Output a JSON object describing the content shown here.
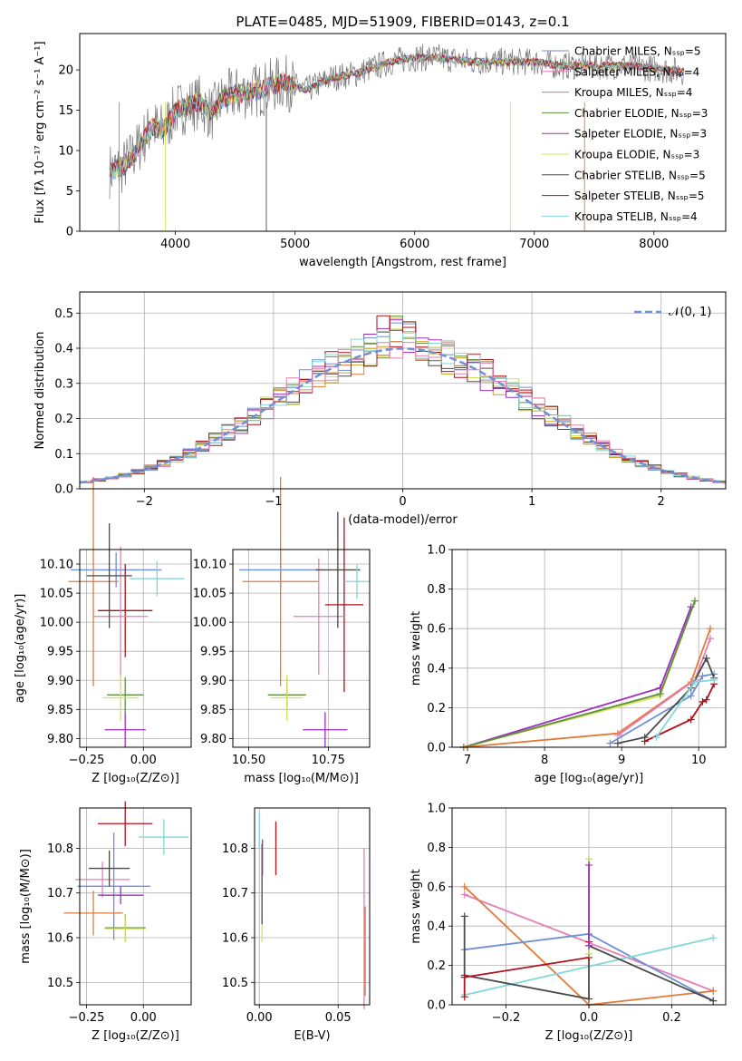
{
  "palette": [
    "#6f8fd6",
    "#e07b39",
    "#c9a227",
    "#5f8f3f",
    "#9b30c0",
    "#d4e25a",
    "#4a4a4a",
    "#b0121b",
    "#82d8d8",
    "#e57fb4"
  ],
  "chart_data": [
    {
      "id": "spectrum",
      "type": "line",
      "title": "PLATE=0485, MJD=51909, FIBERID=0143, z=0.1",
      "xlabel": "wavelength [Angstrom, rest frame]",
      "ylabel": "Flux [fλ 10⁻¹⁷ erg cm⁻² s⁻¹ A⁻¹]",
      "xlim": [
        3200,
        8600
      ],
      "ylim": [
        0,
        24.5
      ],
      "xticks": [
        4000,
        5000,
        6000,
        7000,
        8000
      ],
      "yticks": [
        0,
        5,
        10,
        15,
        20
      ],
      "grid": false,
      "legend_position": "right",
      "spectrum_anchors": [
        [
          3450,
          7.5
        ],
        [
          3550,
          7.8
        ],
        [
          3650,
          9.5
        ],
        [
          3800,
          13
        ],
        [
          3900,
          12.5
        ],
        [
          4000,
          15
        ],
        [
          4100,
          15.5
        ],
        [
          4200,
          16
        ],
        [
          4300,
          14.5
        ],
        [
          4400,
          16.5
        ],
        [
          4500,
          17
        ],
        [
          4700,
          17.5
        ],
        [
          4900,
          18.5
        ],
        [
          5100,
          17.5
        ],
        [
          5300,
          19
        ],
        [
          5500,
          19.5
        ],
        [
          5800,
          21
        ],
        [
          6000,
          21.5
        ],
        [
          6200,
          21.5
        ],
        [
          6500,
          21
        ],
        [
          6800,
          21
        ],
        [
          7000,
          21
        ],
        [
          7200,
          20.5
        ],
        [
          7500,
          20.5
        ],
        [
          7800,
          20.5
        ],
        [
          8100,
          20
        ],
        [
          8250,
          19.8
        ]
      ],
      "series": [
        {
          "name": "Chabrier MILES, Nₛₛₚ=5",
          "color": "#6f8fd6"
        },
        {
          "name": "Salpeter MILES, Nₛₛₚ=4",
          "color": "#e57fb4"
        },
        {
          "name": "Kroupa MILES, Nₛₛₚ=4",
          "color": "#e07b39"
        },
        {
          "name": "Chabrier ELODIE, Nₛₛₚ=3",
          "color": "#5f8f3f"
        },
        {
          "name": "Salpeter ELODIE, Nₛₛₚ=3",
          "color": "#9b30c0"
        },
        {
          "name": "Kroupa ELODIE, Nₛₛₚ=3",
          "color": "#d4e25a"
        },
        {
          "name": "Chabrier STELIB, Nₛₛₚ=5",
          "color": "#4a4a4a"
        },
        {
          "name": "Salpeter STELIB, Nₛₛₚ=5",
          "color": "#b0121b"
        },
        {
          "name": "Kroupa STELIB, Nₛₛₚ=4",
          "color": "#82d8d8"
        }
      ]
    },
    {
      "id": "residuals",
      "type": "line",
      "xlabel": "(data-model)/error",
      "ylabel": "Normed distribution",
      "xlim": [
        -2.5,
        2.5
      ],
      "ylim": [
        0,
        0.56
      ],
      "xticks": [
        -2,
        -1,
        0,
        1,
        2
      ],
      "xtick_labels": [
        "−2",
        "−1",
        "0",
        "1",
        "2"
      ],
      "yticks": [
        0.0,
        0.1,
        0.2,
        0.3,
        0.4,
        0.5
      ],
      "grid": true,
      "legend": [
        {
          "name": "𝒩(0, 1)",
          "color": "#6f8fd6"
        }
      ],
      "legend_position": "upper right",
      "gaussian": {
        "mean": 0,
        "sigma": 1
      },
      "bin_width": 0.1
    },
    {
      "id": "age_vs_Z",
      "type": "scatter",
      "xlabel": "Z [log₁₀(Z/Z⊙)]",
      "ylabel": "age  [log₁₀(age/yr)]",
      "xlim": [
        -0.28,
        0.21
      ],
      "ylim": [
        9.785,
        10.125
      ],
      "xticks": [
        -0.25,
        0.0
      ],
      "xtick_labels": [
        "−0.25",
        "0.00"
      ],
      "yticks": [
        9.8,
        9.85,
        9.9,
        9.95,
        10.0,
        10.05,
        10.1
      ],
      "ytick_labels": [
        "9.80",
        "9.85",
        "9.90",
        "9.95",
        "10.00",
        "10.05",
        "10.10"
      ],
      "grid": true,
      "errorbars": [
        {
          "x": -0.12,
          "y": 10.09,
          "xerr": 0.2,
          "yerr": 0.03,
          "color": "#6f8fd6"
        },
        {
          "x": -0.22,
          "y": 10.07,
          "xerr": 0.11,
          "yerr": 0.18,
          "color": "#e07b39"
        },
        {
          "x": -0.08,
          "y": 10.02,
          "xerr": 0.12,
          "yerr": 0.08,
          "color": "#b0121b"
        },
        {
          "x": -0.1,
          "y": 10.01,
          "xerr": 0.12,
          "yerr": 0.12,
          "color": "#e57fb4"
        },
        {
          "x": -0.15,
          "y": 10.08,
          "xerr": 0.1,
          "yerr": 0.09,
          "color": "#4a4a4a"
        },
        {
          "x": -0.08,
          "y": 9.875,
          "xerr": 0.08,
          "yerr": 0.03,
          "color": "#5f8f3f"
        },
        {
          "x": -0.1,
          "y": 9.87,
          "xerr": 0.08,
          "yerr": 0.04,
          "color": "#d4e25a"
        },
        {
          "x": -0.08,
          "y": 9.815,
          "xerr": 0.09,
          "yerr": 0.03,
          "color": "#9b30c0"
        },
        {
          "x": 0.06,
          "y": 10.075,
          "xerr": 0.12,
          "yerr": 0.03,
          "color": "#82d8d8"
        }
      ]
    },
    {
      "id": "age_vs_mass",
      "type": "scatter",
      "xlabel": "mass [log₁₀(M/M⊙)]",
      "xlim": [
        10.45,
        10.88
      ],
      "ylim": [
        9.785,
        10.125
      ],
      "xticks": [
        10.5,
        10.75
      ],
      "xtick_labels": [
        "10.50",
        "10.75"
      ],
      "yticks": [
        9.8,
        9.85,
        9.9,
        9.95,
        10.0,
        10.05,
        10.1
      ],
      "ytick_labels": [
        "9.80",
        "9.85",
        "9.90",
        "9.95",
        "10.00",
        "10.05",
        "10.10"
      ],
      "grid": true,
      "errorbars": [
        {
          "x": 10.6,
          "y": 10.09,
          "xerr": 0.13,
          "yerr": 0.03,
          "color": "#6f8fd6"
        },
        {
          "x": 10.6,
          "y": 10.07,
          "xerr": 0.12,
          "yerr": 0.18,
          "color": "#e07b39"
        },
        {
          "x": 10.8,
          "y": 10.03,
          "xerr": 0.06,
          "yerr": 0.15,
          "color": "#b0121b"
        },
        {
          "x": 10.72,
          "y": 10.01,
          "xerr": 0.08,
          "yerr": 0.1,
          "color": "#e57fb4"
        },
        {
          "x": 10.78,
          "y": 10.09,
          "xerr": 0.07,
          "yerr": 0.1,
          "color": "#4a4a4a"
        },
        {
          "x": 10.62,
          "y": 9.875,
          "xerr": 0.06,
          "yerr": 0.03,
          "color": "#5f8f3f"
        },
        {
          "x": 10.62,
          "y": 9.87,
          "xerr": 0.05,
          "yerr": 0.04,
          "color": "#d4e25a"
        },
        {
          "x": 10.74,
          "y": 9.815,
          "xerr": 0.07,
          "yerr": 0.03,
          "color": "#9b30c0"
        },
        {
          "x": 10.84,
          "y": 10.07,
          "xerr": 0.04,
          "yerr": 0.03,
          "color": "#82d8d8"
        }
      ]
    },
    {
      "id": "weight_vs_age",
      "type": "line",
      "xlabel": "age  [log₁₀(age/yr)]",
      "ylabel": "mass weight",
      "xlim": [
        6.8,
        10.35
      ],
      "ylim": [
        0,
        1
      ],
      "xticks": [
        7,
        8,
        9,
        10
      ],
      "yticks": [
        0.0,
        0.2,
        0.4,
        0.6,
        0.8,
        1.0
      ],
      "grid": true,
      "series": [
        {
          "color": "#9b30c0",
          "points": [
            [
              6.95,
              0
            ],
            [
              9.5,
              0.3
            ],
            [
              9.9,
              0.71
            ]
          ]
        },
        {
          "color": "#d4e25a",
          "points": [
            [
              6.95,
              0
            ],
            [
              9.5,
              0.26
            ],
            [
              9.95,
              0.74
            ]
          ]
        },
        {
          "color": "#5f8f3f",
          "points": [
            [
              6.95,
              0
            ],
            [
              9.5,
              0.27
            ],
            [
              9.95,
              0.74
            ]
          ]
        },
        {
          "color": "#e07b39",
          "points": [
            [
              6.95,
              0
            ],
            [
              8.95,
              0.07
            ],
            [
              9.9,
              0.33
            ],
            [
              10.15,
              0.6
            ]
          ]
        },
        {
          "color": "#e57fb4",
          "points": [
            [
              8.95,
              0.06
            ],
            [
              9.95,
              0.34
            ],
            [
              10.15,
              0.55
            ]
          ]
        },
        {
          "color": "#6f8fd6",
          "points": [
            [
              8.85,
              0.02
            ],
            [
              9.9,
              0.26
            ],
            [
              10.05,
              0.36
            ],
            [
              10.2,
              0.37
            ]
          ]
        },
        {
          "color": "#4a4a4a",
          "points": [
            [
              8.95,
              0.02
            ],
            [
              9.3,
              0.05
            ],
            [
              9.9,
              0.3
            ],
            [
              10.1,
              0.45
            ],
            [
              10.2,
              0.35
            ]
          ]
        },
        {
          "color": "#b0121b",
          "points": [
            [
              9.3,
              0.03
            ],
            [
              9.9,
              0.14
            ],
            [
              10.05,
              0.23
            ],
            [
              10.1,
              0.24
            ],
            [
              10.2,
              0.32
            ]
          ]
        },
        {
          "color": "#82d8d8",
          "points": [
            [
              9.45,
              0.05
            ],
            [
              9.95,
              0.33
            ],
            [
              10.2,
              0.34
            ]
          ]
        }
      ]
    },
    {
      "id": "mass_vs_Z",
      "type": "scatter",
      "xlabel": "Z [log₁₀(Z/Z⊙)]",
      "ylabel": "mass [log₁₀(M/M⊙)]",
      "xlim": [
        -0.28,
        0.21
      ],
      "ylim": [
        10.45,
        10.89
      ],
      "xticks": [
        -0.25,
        0.0
      ],
      "xtick_labels": [
        "−0.25",
        "0.00"
      ],
      "yticks": [
        10.5,
        10.6,
        10.7,
        10.8
      ],
      "ytick_labels": [
        "10.5",
        "10.6",
        "10.7",
        "10.8"
      ],
      "grid": true,
      "errorbars": [
        {
          "x": -0.13,
          "y": 10.715,
          "xerr": 0.16,
          "yerr": 0.12,
          "color": "#6f8fd6"
        },
        {
          "x": -0.22,
          "y": 10.655,
          "xerr": 0.13,
          "yerr": 0.05,
          "color": "#e07b39"
        },
        {
          "x": -0.08,
          "y": 10.855,
          "xerr": 0.12,
          "yerr": 0.05,
          "color": "#b0121b"
        },
        {
          "x": -0.18,
          "y": 10.73,
          "xerr": 0.12,
          "yerr": 0.04,
          "color": "#e57fb4"
        },
        {
          "x": -0.15,
          "y": 10.755,
          "xerr": 0.09,
          "yerr": 0.04,
          "color": "#4a4a4a"
        },
        {
          "x": -0.08,
          "y": 10.622,
          "xerr": 0.09,
          "yerr": 0.03,
          "color": "#5f8f3f"
        },
        {
          "x": -0.08,
          "y": 10.62,
          "xerr": 0.09,
          "yerr": 0.03,
          "color": "#d4e25a"
        },
        {
          "x": -0.1,
          "y": 10.695,
          "xerr": 0.1,
          "yerr": 0.02,
          "color": "#9b30c0"
        },
        {
          "x": 0.09,
          "y": 10.825,
          "xerr": 0.11,
          "yerr": 0.04,
          "color": "#82d8d8"
        }
      ]
    },
    {
      "id": "mass_vs_ebv",
      "type": "scatter",
      "xlabel": "E(B-V)",
      "xlim": [
        -0.003,
        0.07
      ],
      "ylim": [
        10.45,
        10.89
      ],
      "xticks": [
        0.0,
        0.05
      ],
      "xtick_labels": [
        "0.00",
        "0.05"
      ],
      "yticks": [
        10.5,
        10.6,
        10.7,
        10.8
      ],
      "ytick_labels": [
        "10.5",
        "10.6",
        "10.7",
        "10.8"
      ],
      "grid": true,
      "errorbars": [
        {
          "x": 0.0,
          "y": 10.84,
          "xerr": 0,
          "yerr": 0.04,
          "color": "#82d8d8"
        },
        {
          "x": 0.0017,
          "y": 10.7,
          "xerr": 0,
          "yerr": 0.11,
          "color": "#d4e25a"
        },
        {
          "x": 0.0017,
          "y": 10.72,
          "xerr": 0,
          "yerr": 0.09,
          "color": "#4a4a4a"
        },
        {
          "x": 0.002,
          "y": 10.78,
          "xerr": 0,
          "yerr": 0.04,
          "color": "#9b30c0"
        },
        {
          "x": 0.0105,
          "y": 10.8,
          "xerr": 0,
          "yerr": 0.06,
          "color": "#b0121b"
        },
        {
          "x": 0.0665,
          "y": 10.62,
          "xerr": 0,
          "yerr": 0.18,
          "color": "#e57fb4"
        },
        {
          "x": 0.0672,
          "y": 10.57,
          "xerr": 0,
          "yerr": 0.1,
          "color": "#e07b39"
        }
      ]
    },
    {
      "id": "weight_vs_Z",
      "type": "line",
      "xlabel": "Z [log₁₀(Z/Z⊙)]",
      "ylabel": "mass weight",
      "xlim": [
        -0.33,
        0.33
      ],
      "ylim": [
        0,
        1
      ],
      "xticks": [
        -0.2,
        0.0,
        0.2
      ],
      "xtick_labels": [
        "−0.2",
        "0.0",
        "0.2"
      ],
      "yticks": [
        0.0,
        0.2,
        0.4,
        0.6,
        0.8,
        1.0
      ],
      "grid": true,
      "series": [
        {
          "color": "#e57fb4",
          "points": [
            [
              -0.3,
              0.56
            ],
            [
              0.3,
              0.07
            ]
          ]
        },
        {
          "color": "#e07b39",
          "points": [
            [
              -0.3,
              0.6
            ],
            [
              0.0,
              0.0
            ],
            [
              0.3,
              0.07
            ]
          ]
        },
        {
          "color": "#6f8fd6",
          "points": [
            [
              -0.3,
              0.28
            ],
            [
              0.0,
              0.36
            ],
            [
              0.3,
              0.02
            ]
          ]
        },
        {
          "color": "#82d8d8",
          "points": [
            [
              -0.3,
              0.05
            ],
            [
              0.3,
              0.34
            ]
          ]
        },
        {
          "color": "#4a4a4a",
          "points": [
            [
              -0.3,
              0.45
            ],
            [
              -0.3,
              0.15
            ],
            [
              0.0,
              0.03
            ],
            [
              0.0,
              0.3
            ],
            [
              0.3,
              0.02
            ]
          ]
        },
        {
          "color": "#b0121b",
          "points": [
            [
              -0.3,
              0.04
            ],
            [
              -0.3,
              0.14
            ],
            [
              0.0,
              0.24
            ],
            [
              0.0,
              0.32
            ]
          ]
        },
        {
          "color": "#5f8f3f",
          "points": [
            [
              0.0,
              0.74
            ],
            [
              0.0,
              0.26
            ]
          ]
        },
        {
          "color": "#d4e25a",
          "points": [
            [
              0.0,
              0.74
            ],
            [
              0.0,
              0.26
            ]
          ]
        },
        {
          "color": "#9b30c0",
          "points": [
            [
              0.0,
              0.71
            ],
            [
              0.0,
              0.3
            ]
          ]
        }
      ]
    }
  ]
}
